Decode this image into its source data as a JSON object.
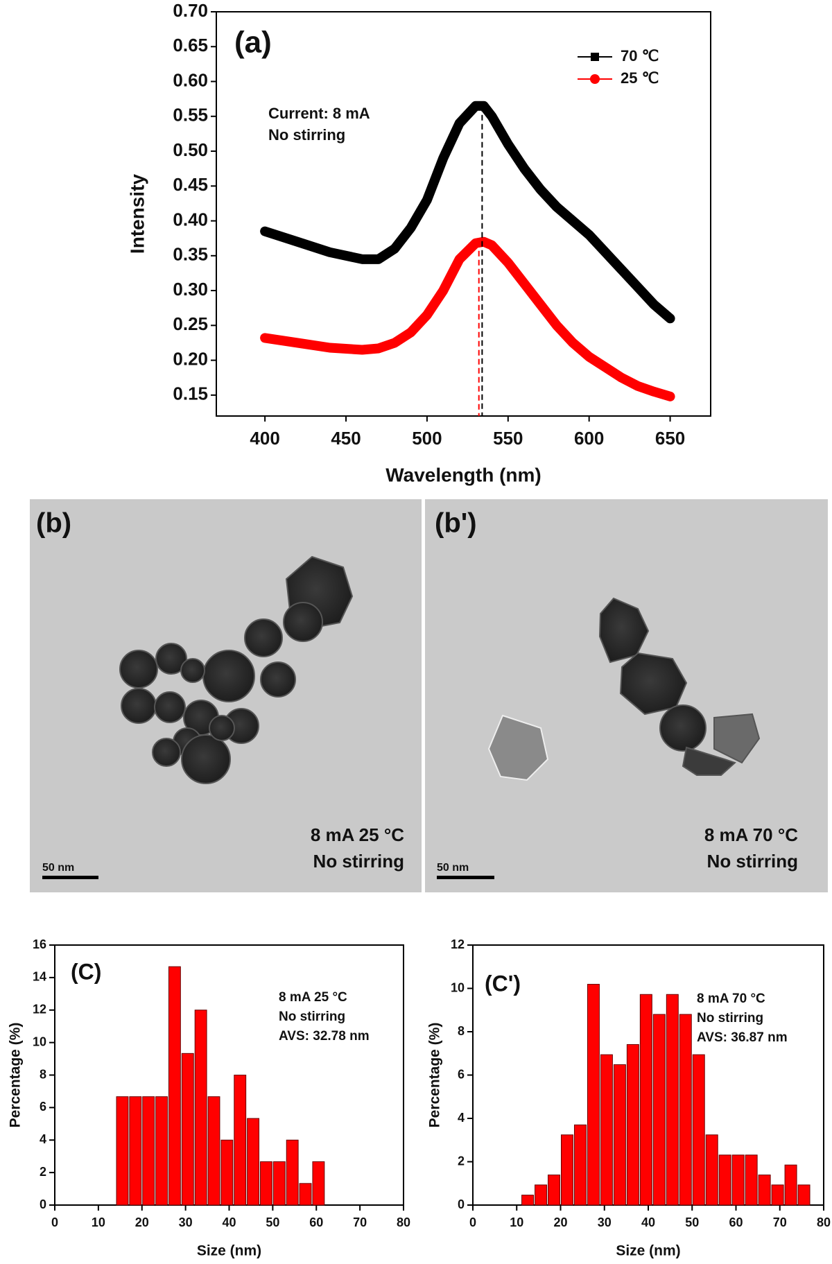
{
  "chart_data": [
    {
      "type": "line",
      "xlabel": "Wavelength (nm)",
      "ylabel": "Intensity",
      "annotations": [
        "(a)",
        "Current: 8 mA",
        "No stirring"
      ],
      "x": [
        400,
        420,
        440,
        460,
        470,
        480,
        490,
        500,
        510,
        520,
        530,
        535,
        540,
        550,
        560,
        570,
        580,
        590,
        600,
        610,
        620,
        630,
        640,
        650
      ],
      "series": [
        {
          "name": "70 ℃",
          "color": "#000000",
          "marker": "square",
          "values": [
            0.385,
            0.37,
            0.355,
            0.345,
            0.345,
            0.36,
            0.39,
            0.43,
            0.49,
            0.54,
            0.565,
            0.565,
            0.55,
            0.51,
            0.475,
            0.445,
            0.42,
            0.4,
            0.38,
            0.355,
            0.33,
            0.305,
            0.28,
            0.26
          ]
        },
        {
          "name": "25 ℃",
          "color": "#ff0000",
          "marker": "circle",
          "values": [
            0.232,
            0.225,
            0.218,
            0.215,
            0.217,
            0.225,
            0.24,
            0.265,
            0.3,
            0.345,
            0.368,
            0.37,
            0.365,
            0.34,
            0.31,
            0.28,
            0.25,
            0.225,
            0.205,
            0.19,
            0.175,
            0.163,
            0.155,
            0.148
          ]
        }
      ],
      "peak_lines": [
        {
          "x": 534,
          "y": 0.565,
          "color": "#000000"
        },
        {
          "x": 532,
          "y": 0.37,
          "color": "#ff0000"
        }
      ],
      "xlim": [
        370,
        675
      ],
      "ylim": [
        0.12,
        0.7
      ],
      "xticks": [
        400,
        450,
        500,
        550,
        600,
        650
      ],
      "yticks": [
        0.15,
        {
          "value": 0.2,
          "label": "0.20"
        },
        0.25,
        {
          "value": 0.3,
          "label": "0.30"
        },
        0.35,
        {
          "value": 0.4,
          "label": "0.40"
        },
        0.45,
        {
          "value": 0.5,
          "label": "0.50"
        },
        0.55,
        {
          "value": 0.6,
          "label": "0.60"
        },
        0.65,
        {
          "value": 0.7,
          "label": "0.70"
        }
      ],
      "legend": "upper right"
    },
    {
      "type": "histogram",
      "xlabel": "Size (nm)",
      "ylabel": "Percentage (%)",
      "annotations": [
        "(C)",
        "8 mA 25 °C",
        "No stirring",
        "AVS: 32.78 nm"
      ],
      "bins": [
        14,
        17,
        20,
        23,
        26,
        29,
        32,
        35,
        38,
        41,
        44,
        47,
        50,
        53,
        56,
        59,
        62
      ],
      "values": [
        6.67,
        6.67,
        6.67,
        6.67,
        14.67,
        9.33,
        12,
        6.67,
        4,
        8,
        5.33,
        2.67,
        2.67,
        4,
        1.33,
        2.67
      ],
      "color": "#ff0000",
      "xlim": [
        0,
        80
      ],
      "ylim": [
        0,
        16
      ],
      "xticks": [
        0,
        10,
        20,
        30,
        40,
        50,
        60,
        70,
        80
      ],
      "yticks": [
        0,
        2,
        4,
        6,
        8,
        10,
        12,
        14,
        16
      ]
    },
    {
      "type": "histogram",
      "xlabel": "Size (nm)",
      "ylabel": "Percentage (%)",
      "annotations": [
        "(C')",
        "8 mA 70 °C",
        "No stirring",
        "AVS: 36.87 nm"
      ],
      "bins": [
        11,
        14,
        17,
        20,
        23,
        26,
        29,
        32,
        35,
        38,
        41,
        44,
        47,
        50,
        53,
        56,
        59,
        62,
        65,
        68,
        71,
        74,
        77
      ],
      "values": [
        0.46,
        0.93,
        1.39,
        3.24,
        3.7,
        10.19,
        6.94,
        6.48,
        7.41,
        9.72,
        8.8,
        9.72,
        8.8,
        6.94,
        3.24,
        2.31,
        2.31,
        2.31,
        1.39,
        0.93,
        1.85,
        0.93
      ],
      "color": "#ff0000",
      "xlim": [
        0,
        80
      ],
      "ylim": [
        0,
        12
      ],
      "xticks": [
        0,
        10,
        20,
        30,
        40,
        50,
        60,
        70,
        80
      ],
      "yticks": [
        0,
        2,
        4,
        6,
        8,
        10,
        12
      ]
    }
  ],
  "images": [
    {
      "label": "(b)",
      "annotations": [
        "8 mA 25 °C",
        "No stirring"
      ],
      "scale_bar": "50 nm"
    },
    {
      "label": "(b')",
      "annotations": [
        "8 mA 70 °C",
        "No stirring"
      ],
      "scale_bar": "50 nm"
    }
  ]
}
